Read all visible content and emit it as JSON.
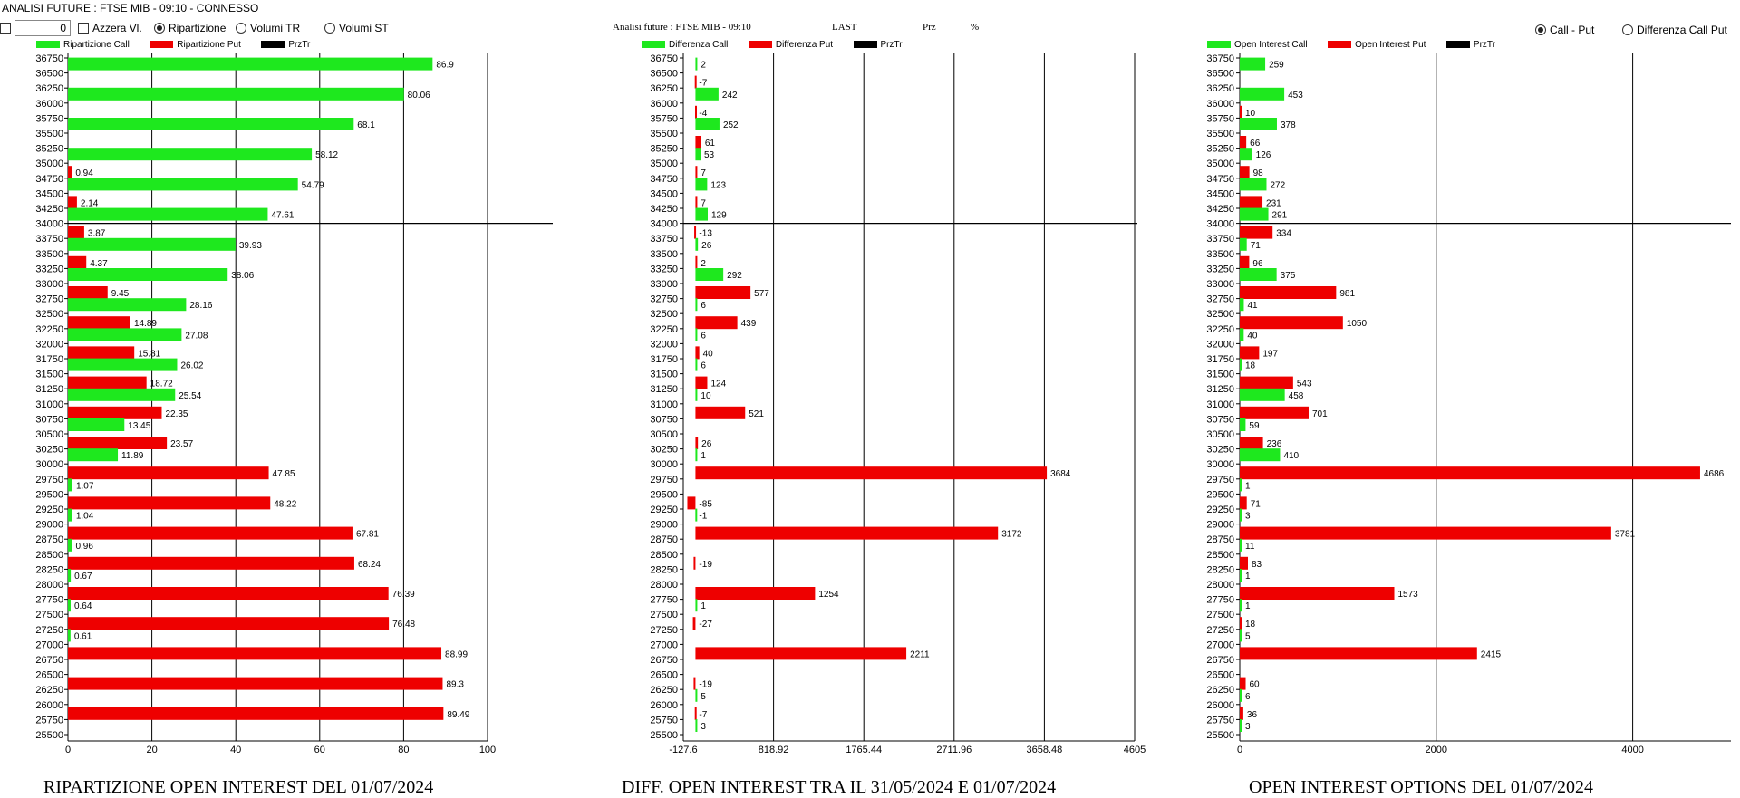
{
  "window_title": "ANALISI FUTURE : FTSE MIB - 09:10 - CONNESSO",
  "controls": {
    "number_value": "0",
    "azzera_label": "Azzera Vl.",
    "radio_ripartizione": "Ripartizione",
    "radio_volumi_tr": "Volumi TR",
    "radio_volumi_st": "Volumi ST",
    "radio_call_put": "Call - Put",
    "radio_diff_call_put": "Differenza Call Put"
  },
  "header2": {
    "title": "Analisi future : FTSE MIB - 09:10",
    "last": "LAST",
    "prz": "Prz",
    "pct": "%"
  },
  "colors": {
    "call": "#1ee81e",
    "put": "#ee0000",
    "prztr": "#000000"
  },
  "captions": {
    "left": "RIPARTIZIONE OPEN INTEREST DEL 01/07/2024",
    "middle": "DIFF. OPEN INTEREST TRA IL 31/05/2024 E 01/07/2024",
    "right": "OPEN INTEREST OPTIONS DEL 01/07/2024"
  },
  "chart_data": [
    {
      "type": "bar",
      "orientation": "horizontal",
      "legend": [
        "Ripartizione Call",
        "Ripartizione Put",
        "PrzTr"
      ],
      "strikes": [
        "36750",
        "36500",
        "36250",
        "36000",
        "35750",
        "35500",
        "35250",
        "35000",
        "34750",
        "34500",
        "34250",
        "34000",
        "33750",
        "33500",
        "33250",
        "33000",
        "32750",
        "32500",
        "32250",
        "32000",
        "31750",
        "31500",
        "31250",
        "31000",
        "30750",
        "30500",
        "30250",
        "30000",
        "29750",
        "29500",
        "29250",
        "29000",
        "28750",
        "28500",
        "28250",
        "28000",
        "27750",
        "27500",
        "27250",
        "27000",
        "26750",
        "26500",
        "26250",
        "26000",
        "25750",
        "25500"
      ],
      "x_ticks": [
        "0",
        "20",
        "40",
        "60",
        "80",
        "100"
      ],
      "xlim": [
        0,
        100
      ],
      "price_line_strike": "34000",
      "bars": [
        {
          "strike": "36500",
          "series": "call",
          "value": 86.9,
          "label": "86.9"
        },
        {
          "strike": "36000",
          "series": "call",
          "value": 80.06,
          "label": "80.06"
        },
        {
          "strike": "35500",
          "series": "call",
          "value": 68.1,
          "label": "68.1"
        },
        {
          "strike": "35000",
          "series": "call",
          "value": 58.12,
          "label": "58.12"
        },
        {
          "strike": "35000",
          "series": "put",
          "value": 0.94,
          "label": "0.94"
        },
        {
          "strike": "34500",
          "series": "call",
          "value": 54.79,
          "label": "54.79"
        },
        {
          "strike": "34500",
          "series": "put",
          "value": 2.14,
          "label": "2.14"
        },
        {
          "strike": "34000",
          "series": "call",
          "value": 47.61,
          "label": "47.61"
        },
        {
          "strike": "34000",
          "series": "put",
          "value": 3.87,
          "label": "3.87"
        },
        {
          "strike": "33500",
          "series": "call",
          "value": 39.93,
          "label": "39.93"
        },
        {
          "strike": "33500",
          "series": "put",
          "value": 4.37,
          "label": "4.37"
        },
        {
          "strike": "33000",
          "series": "call",
          "value": 38.06,
          "label": "38.06"
        },
        {
          "strike": "33000",
          "series": "put",
          "value": 9.45,
          "label": "9.45"
        },
        {
          "strike": "32500",
          "series": "call",
          "value": 28.16,
          "label": "28.16"
        },
        {
          "strike": "32500",
          "series": "put",
          "value": 14.89,
          "label": "14.89"
        },
        {
          "strike": "32000",
          "series": "call",
          "value": 27.08,
          "label": "27.08"
        },
        {
          "strike": "32000",
          "series": "put",
          "value": 15.81,
          "label": "15.81"
        },
        {
          "strike": "31500",
          "series": "call",
          "value": 26.02,
          "label": "26.02"
        },
        {
          "strike": "31500",
          "series": "put",
          "value": 18.72,
          "label": "18.72"
        },
        {
          "strike": "31000",
          "series": "call",
          "value": 25.54,
          "label": "25.54"
        },
        {
          "strike": "31000",
          "series": "put",
          "value": 22.35,
          "label": "22.35"
        },
        {
          "strike": "30500",
          "series": "call",
          "value": 13.45,
          "label": "13.45"
        },
        {
          "strike": "30500",
          "series": "put",
          "value": 23.57,
          "label": "23.57"
        },
        {
          "strike": "30000",
          "series": "call",
          "value": 11.89,
          "label": "11.89"
        },
        {
          "strike": "30000",
          "series": "put",
          "value": 47.85,
          "label": "47.85"
        },
        {
          "strike": "29500",
          "series": "call",
          "value": 1.07,
          "label": "1.07"
        },
        {
          "strike": "29500",
          "series": "put",
          "value": 48.22,
          "label": "48.22"
        },
        {
          "strike": "29000",
          "series": "call",
          "value": 1.04,
          "label": "1.04"
        },
        {
          "strike": "29000",
          "series": "put",
          "value": 67.81,
          "label": "67.81"
        },
        {
          "strike": "28500",
          "series": "call",
          "value": 0.96,
          "label": "0.96"
        },
        {
          "strike": "28500",
          "series": "put",
          "value": 68.24,
          "label": "68.24"
        },
        {
          "strike": "28000",
          "series": "call",
          "value": 0.67,
          "label": "0.67"
        },
        {
          "strike": "28000",
          "series": "put",
          "value": 76.39,
          "label": "76.39"
        },
        {
          "strike": "27500",
          "series": "call",
          "value": 0.64,
          "label": "0.64"
        },
        {
          "strike": "27500",
          "series": "put",
          "value": 76.48,
          "label": "76.48"
        },
        {
          "strike": "27000",
          "series": "call",
          "value": 0.61,
          "label": "0.61"
        },
        {
          "strike": "27000",
          "series": "put",
          "value": 88.99,
          "label": "88.99"
        },
        {
          "strike": "26500",
          "series": "put",
          "value": 89.3,
          "label": "89.3"
        },
        {
          "strike": "26000",
          "series": "put",
          "value": 89.49,
          "label": "89.49"
        }
      ]
    },
    {
      "type": "bar",
      "orientation": "horizontal",
      "legend": [
        "Differenza Call",
        "Differenza Put",
        "PrzTr"
      ],
      "strikes": [
        "36750",
        "36500",
        "36250",
        "36000",
        "35750",
        "35500",
        "35250",
        "35000",
        "34750",
        "34500",
        "34250",
        "34000",
        "33750",
        "33500",
        "33250",
        "33000",
        "32750",
        "32500",
        "32250",
        "32000",
        "31750",
        "31500",
        "31250",
        "31000",
        "30750",
        "30500",
        "30250",
        "30000",
        "29750",
        "29500",
        "29250",
        "29000",
        "28750",
        "28500",
        "28250",
        "28000",
        "27750",
        "27500",
        "27250",
        "27000",
        "26750",
        "26500",
        "26250",
        "26000",
        "25750",
        "25500"
      ],
      "x_ticks": [
        "-127.6",
        "818.92",
        "1765.44",
        "2711.96",
        "3658.48",
        "4605"
      ],
      "xlim": [
        -127.6,
        4605
      ],
      "price_line_strike": "34000",
      "bars": [
        {
          "strike": "36500",
          "series": "call",
          "value": 2,
          "label": "2"
        },
        {
          "strike": "36500",
          "series": "put",
          "value": -7,
          "label": "-7"
        },
        {
          "strike": "36000",
          "series": "call",
          "value": 242,
          "label": "242"
        },
        {
          "strike": "36000",
          "series": "put",
          "value": -4,
          "label": "-4"
        },
        {
          "strike": "35500",
          "series": "call",
          "value": 252,
          "label": "252"
        },
        {
          "strike": "35500",
          "series": "put",
          "value": 61,
          "label": "61"
        },
        {
          "strike": "35000",
          "series": "call",
          "value": 53,
          "label": "53"
        },
        {
          "strike": "35000",
          "series": "put",
          "value": 7,
          "label": "7"
        },
        {
          "strike": "34500",
          "series": "call",
          "value": 123,
          "label": "123"
        },
        {
          "strike": "34500",
          "series": "put",
          "value": 7,
          "label": "7"
        },
        {
          "strike": "34000",
          "series": "call",
          "value": 129,
          "label": "129"
        },
        {
          "strike": "34000",
          "series": "put",
          "value": -13,
          "label": "-13"
        },
        {
          "strike": "33500",
          "series": "call",
          "value": 26,
          "label": "26"
        },
        {
          "strike": "33500",
          "series": "put",
          "value": 2,
          "label": "2"
        },
        {
          "strike": "33000",
          "series": "call",
          "value": 292,
          "label": "292"
        },
        {
          "strike": "33000",
          "series": "put",
          "value": 577,
          "label": "577"
        },
        {
          "strike": "32500",
          "series": "call",
          "value": 6,
          "label": "6"
        },
        {
          "strike": "32500",
          "series": "put",
          "value": 439,
          "label": "439"
        },
        {
          "strike": "32000",
          "series": "call",
          "value": 6,
          "label": "6"
        },
        {
          "strike": "32000",
          "series": "put",
          "value": 40,
          "label": "40"
        },
        {
          "strike": "31500",
          "series": "call",
          "value": 6,
          "label": "6"
        },
        {
          "strike": "31500",
          "series": "put",
          "value": 124,
          "label": "124"
        },
        {
          "strike": "31000",
          "series": "call",
          "value": 10,
          "label": "10"
        },
        {
          "strike": "31000",
          "series": "put",
          "value": 521,
          "label": "521"
        },
        {
          "strike": "30500",
          "series": "put",
          "value": 26,
          "label": "26"
        },
        {
          "strike": "30000",
          "series": "call",
          "value": 1,
          "label": "1"
        },
        {
          "strike": "30000",
          "series": "put",
          "value": 3684,
          "label": "3684"
        },
        {
          "strike": "29500",
          "series": "put",
          "value": -85,
          "label": "-85"
        },
        {
          "strike": "29000",
          "series": "call",
          "value": -1,
          "label": "-1"
        },
        {
          "strike": "29000",
          "series": "put",
          "value": 3172,
          "label": "3172"
        },
        {
          "strike": "28500",
          "series": "put",
          "value": -19,
          "label": "-19"
        },
        {
          "strike": "28000",
          "series": "put",
          "value": 1254,
          "label": "1254"
        },
        {
          "strike": "27500",
          "series": "call",
          "value": 1,
          "label": "1"
        },
        {
          "strike": "27500",
          "series": "put",
          "value": -27,
          "label": "-27"
        },
        {
          "strike": "27000",
          "series": "put",
          "value": 2211,
          "label": "2211"
        },
        {
          "strike": "26500",
          "series": "put",
          "value": -19,
          "label": "-19"
        },
        {
          "strike": "26000",
          "series": "call",
          "value": 5,
          "label": "5"
        },
        {
          "strike": "26000",
          "series": "put",
          "value": -7,
          "label": "-7"
        },
        {
          "strike": "25500",
          "series": "call",
          "value": 3,
          "label": "3"
        }
      ]
    },
    {
      "type": "bar",
      "orientation": "horizontal",
      "legend": [
        "Open Interest Call",
        "Open Interest Put",
        "PrzTr"
      ],
      "strikes": [
        "36750",
        "36500",
        "36250",
        "36000",
        "35750",
        "35500",
        "35250",
        "35000",
        "34750",
        "34500",
        "34250",
        "34000",
        "33750",
        "33500",
        "33250",
        "33000",
        "32750",
        "32500",
        "32250",
        "32000",
        "31750",
        "31500",
        "31250",
        "31000",
        "30750",
        "30500",
        "30250",
        "30000",
        "29750",
        "29500",
        "29250",
        "29000",
        "28750",
        "28500",
        "28250",
        "28000",
        "27750",
        "27500",
        "27250",
        "27000",
        "26750",
        "26500",
        "26250",
        "26000",
        "25750",
        "25500"
      ],
      "x_ticks": [
        "0",
        "2000",
        "4000"
      ],
      "xlim": [
        0,
        5000
      ],
      "price_line_strike": "34000",
      "bars": [
        {
          "strike": "36500",
          "series": "call",
          "value": 259,
          "label": "259"
        },
        {
          "strike": "36000",
          "series": "call",
          "value": 453,
          "label": "453"
        },
        {
          "strike": "36000",
          "series": "put",
          "value": 10,
          "label": "10"
        },
        {
          "strike": "35500",
          "series": "call",
          "value": 378,
          "label": "378"
        },
        {
          "strike": "35500",
          "series": "put",
          "value": 66,
          "label": "66"
        },
        {
          "strike": "35000",
          "series": "call",
          "value": 126,
          "label": "126"
        },
        {
          "strike": "35000",
          "series": "put",
          "value": 98,
          "label": "98"
        },
        {
          "strike": "34500",
          "series": "call",
          "value": 272,
          "label": "272"
        },
        {
          "strike": "34500",
          "series": "put",
          "value": 231,
          "label": "231"
        },
        {
          "strike": "34000",
          "series": "call",
          "value": 291,
          "label": "291"
        },
        {
          "strike": "34000",
          "series": "put",
          "value": 334,
          "label": "334"
        },
        {
          "strike": "33500",
          "series": "call",
          "value": 71,
          "label": "71"
        },
        {
          "strike": "33500",
          "series": "put",
          "value": 96,
          "label": "96"
        },
        {
          "strike": "33000",
          "series": "call",
          "value": 375,
          "label": "375"
        },
        {
          "strike": "33000",
          "series": "put",
          "value": 981,
          "label": "981"
        },
        {
          "strike": "32500",
          "series": "call",
          "value": 41,
          "label": "41"
        },
        {
          "strike": "32500",
          "series": "put",
          "value": 1050,
          "label": "1050"
        },
        {
          "strike": "32000",
          "series": "call",
          "value": 40,
          "label": "40"
        },
        {
          "strike": "32000",
          "series": "put",
          "value": 197,
          "label": "197"
        },
        {
          "strike": "31500",
          "series": "call",
          "value": 18,
          "label": "18"
        },
        {
          "strike": "31500",
          "series": "put",
          "value": 543,
          "label": "543"
        },
        {
          "strike": "31000",
          "series": "call",
          "value": 458,
          "label": "458"
        },
        {
          "strike": "31000",
          "series": "put",
          "value": 701,
          "label": "701"
        },
        {
          "strike": "30500",
          "series": "call",
          "value": 59,
          "label": "59"
        },
        {
          "strike": "30500",
          "series": "put",
          "value": 236,
          "label": "236"
        },
        {
          "strike": "30000",
          "series": "call",
          "value": 410,
          "label": "410"
        },
        {
          "strike": "30000",
          "series": "put",
          "value": 4686,
          "label": "4686"
        },
        {
          "strike": "29500",
          "series": "call",
          "value": 1,
          "label": "1"
        },
        {
          "strike": "29500",
          "series": "put",
          "value": 71,
          "label": "71"
        },
        {
          "strike": "29000",
          "series": "call",
          "value": 3,
          "label": "3"
        },
        {
          "strike": "29000",
          "series": "put",
          "value": 3781,
          "label": "3781"
        },
        {
          "strike": "28500",
          "series": "call",
          "value": 11,
          "label": "11"
        },
        {
          "strike": "28500",
          "series": "put",
          "value": 83,
          "label": "83"
        },
        {
          "strike": "28000",
          "series": "call",
          "value": 1,
          "label": "1"
        },
        {
          "strike": "28000",
          "series": "put",
          "value": 1573,
          "label": "1573"
        },
        {
          "strike": "27500",
          "series": "call",
          "value": 1,
          "label": "1"
        },
        {
          "strike": "27500",
          "series": "put",
          "value": 18,
          "label": "18"
        },
        {
          "strike": "27000",
          "series": "call",
          "value": 5,
          "label": "5"
        },
        {
          "strike": "27000",
          "series": "put",
          "value": 2415,
          "label": "2415"
        },
        {
          "strike": "26500",
          "series": "put",
          "value": 60,
          "label": "60"
        },
        {
          "strike": "26000",
          "series": "call",
          "value": 6,
          "label": "6"
        },
        {
          "strike": "26000",
          "series": "put",
          "value": 36,
          "label": "36"
        },
        {
          "strike": "25500",
          "series": "call",
          "value": 3,
          "label": "3"
        }
      ]
    }
  ]
}
